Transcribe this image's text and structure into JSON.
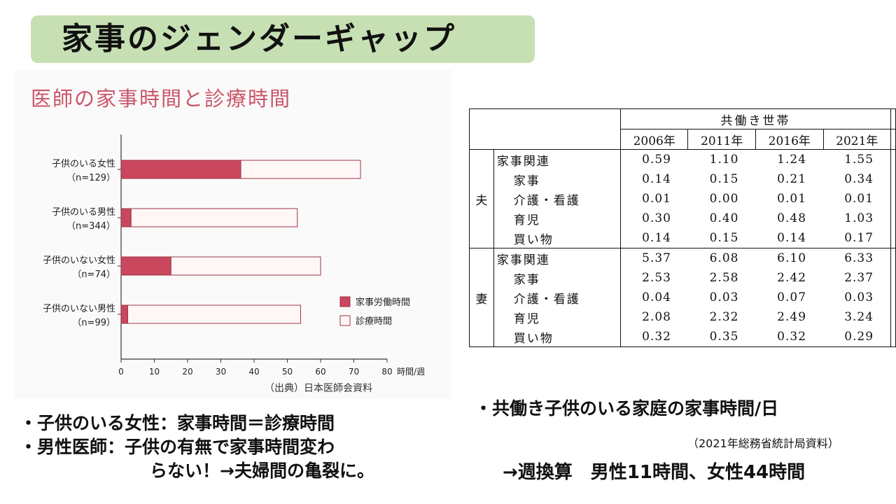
{
  "title": "家事のジェンダーギャップ",
  "chart_data": {
    "type": "bar",
    "stacked": true,
    "orientation": "horizontal",
    "title": "医師の家事時間と診療時間",
    "categories": [
      [
        "子供のいる女性",
        "（n=129）"
      ],
      [
        "子供のいる男性",
        "（n=344）"
      ],
      [
        "子供のいない女性",
        "（n=74）"
      ],
      [
        "子供のいない男性",
        "（n=99）"
      ]
    ],
    "series": [
      {
        "name": "家事労働時間",
        "values": [
          36,
          3,
          15,
          2
        ],
        "color": "#c9485e"
      },
      {
        "name": "診療時間",
        "values": [
          36,
          50,
          45,
          52
        ],
        "color": "#fff7f7"
      }
    ],
    "xlim": [
      0,
      80
    ],
    "xticks": [
      "0",
      "10",
      "20",
      "30",
      "40",
      "50",
      "60",
      "70",
      "80"
    ],
    "xlabel": "時間/週",
    "legend": "right"
  },
  "chart_source": "（出典）日本医師会資料",
  "left_bullets": [
    "・子供のいる女性：家事時間＝診療時間",
    "・男性医師：子供の有無で家事時間変わ",
    "らない！→夫婦間の亀裂に。"
  ],
  "table": {
    "header_group": "共働き世帯",
    "years": [
      "2006年",
      "2011年",
      "2016年",
      "2021年"
    ],
    "groups": [
      {
        "label": "夫",
        "rows": [
          {
            "item": "家事関連",
            "values": [
              "0.59",
              "1.10",
              "1.24",
              "1.55"
            ]
          },
          {
            "item": "家事",
            "values": [
              "0.14",
              "0.15",
              "0.21",
              "0.34"
            ]
          },
          {
            "item": "介護・看護",
            "values": [
              "0.01",
              "0.00",
              "0.01",
              "0.01"
            ]
          },
          {
            "item": "育児",
            "values": [
              "0.30",
              "0.40",
              "0.48",
              "1.03"
            ]
          },
          {
            "item": "買い物",
            "values": [
              "0.14",
              "0.15",
              "0.14",
              "0.17"
            ]
          }
        ]
      },
      {
        "label": "妻",
        "rows": [
          {
            "item": "家事関連",
            "values": [
              "5.37",
              "6.08",
              "6.10",
              "6.33"
            ]
          },
          {
            "item": "家事",
            "values": [
              "2.53",
              "2.58",
              "2.42",
              "2.37"
            ]
          },
          {
            "item": "介護・看護",
            "values": [
              "0.04",
              "0.03",
              "0.07",
              "0.03"
            ]
          },
          {
            "item": "育児",
            "values": [
              "2.08",
              "2.32",
              "2.49",
              "3.24"
            ]
          },
          {
            "item": "買い物",
            "values": [
              "0.32",
              "0.35",
              "0.32",
              "0.29"
            ]
          }
        ]
      }
    ]
  },
  "right_bullet": "・共働き子供のいる家庭の家事時間/日",
  "right_source": "（2021年総務省統計局資料）",
  "right_conversion": "→週換算　男性11時間、女性44時間"
}
